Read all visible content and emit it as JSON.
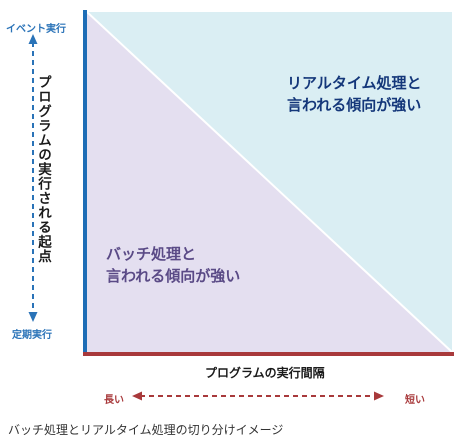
{
  "diagram": {
    "y_axis": {
      "title": "プログラムの実行される起点",
      "top_label": "イベント実行",
      "bottom_label": "定期実行"
    },
    "x_axis": {
      "title": "プログラムの実行間隔",
      "left_label": "長い",
      "right_label": "短い"
    },
    "regions": {
      "realtime": {
        "line1": "リアルタイム処理と",
        "line2": "言われる傾向が強い",
        "color": "#daeef3"
      },
      "batch": {
        "line1": "バッチ処理と",
        "line2": "言われる傾向が強い",
        "color": "#e4dff0"
      }
    },
    "colors": {
      "y_axis_line": "#1e6db6",
      "x_axis_line": "#a8393b",
      "y_arrow": "#2a73b8",
      "x_arrow": "#a8393b"
    }
  },
  "caption": "バッチ処理とリアルタイム処理の切り分けイメージ"
}
